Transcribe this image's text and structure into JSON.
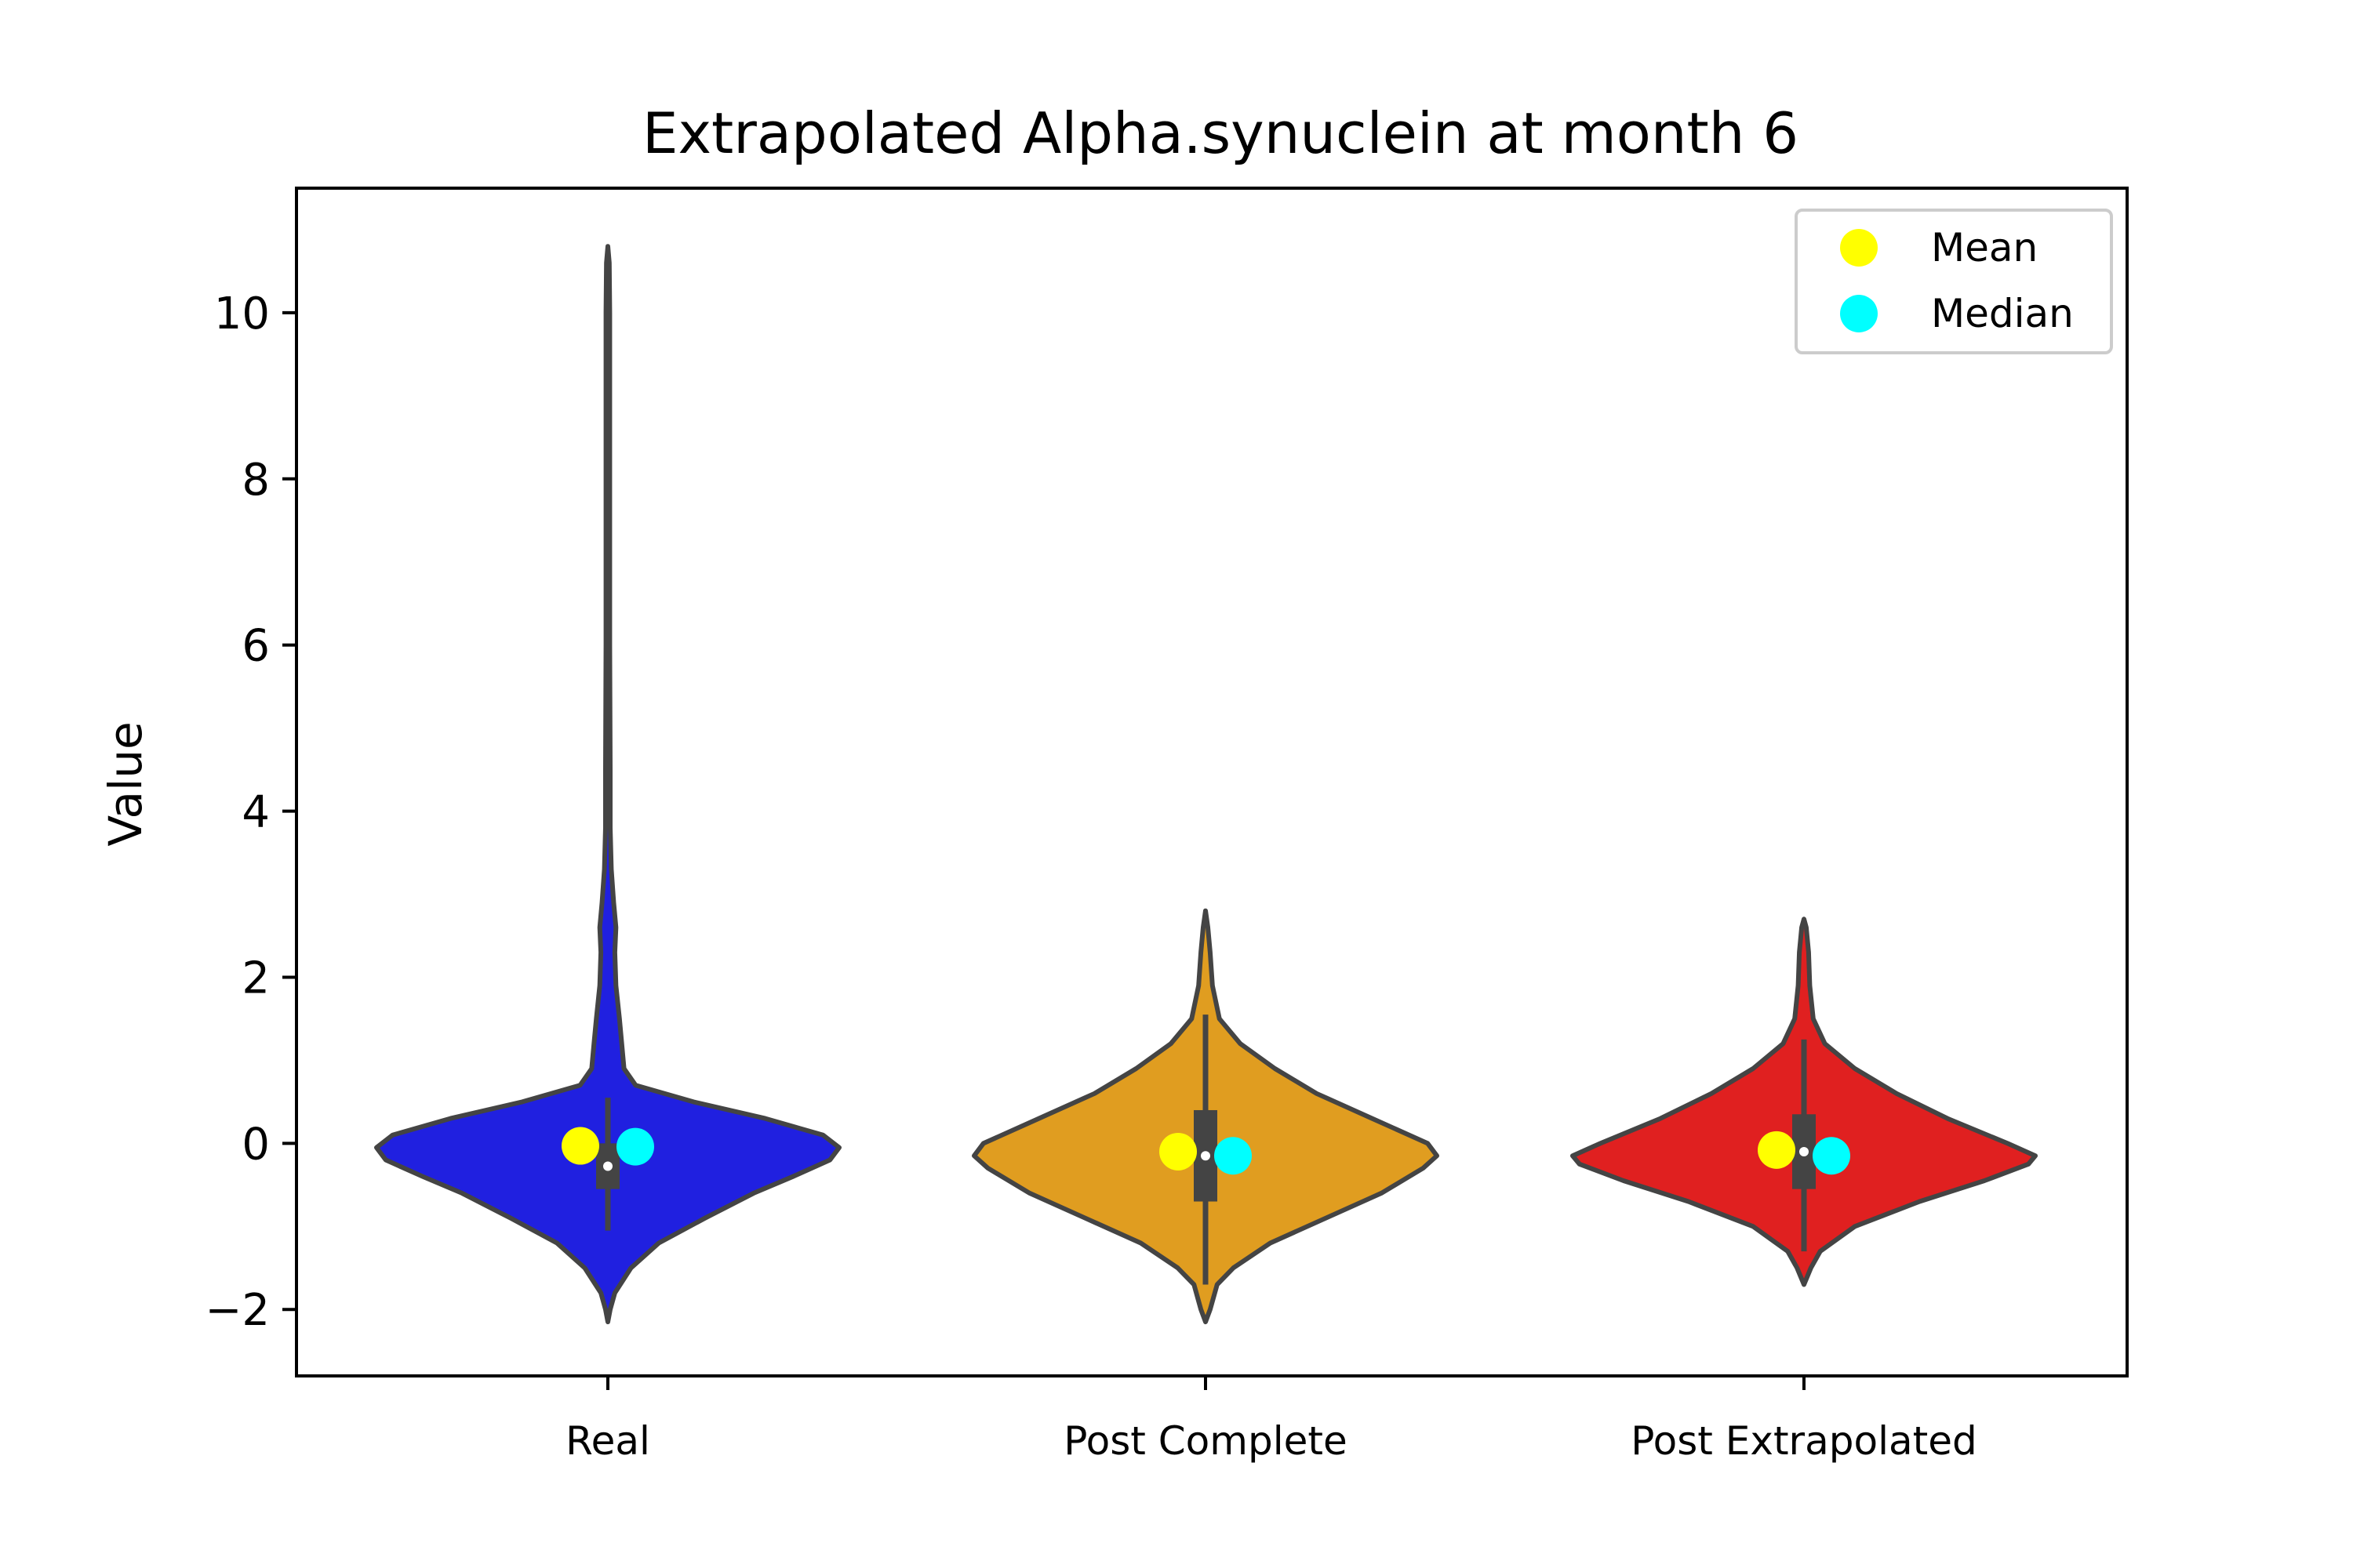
{
  "chart_data": {
    "type": "violin",
    "title": "Extrapolated Alpha.synuclein at month 6",
    "xlabel": "",
    "ylabel": "Value",
    "ylim": [
      -2.8,
      11.5
    ],
    "yticks": [
      -2,
      0,
      2,
      4,
      6,
      8,
      10
    ],
    "ytick_labels": [
      "−2",
      "0",
      "2",
      "4",
      "6",
      "8",
      "10"
    ],
    "grid": false,
    "legend_position": "top-right",
    "legend": [
      {
        "label": "Mean",
        "color": "#ffff00"
      },
      {
        "label": "Median",
        "color": "#00ffff"
      }
    ],
    "categories": [
      "Real",
      "Post Complete",
      "Post Extrapolated"
    ],
    "series": [
      {
        "category": "Real",
        "color": "#2020e0",
        "mean": -0.03,
        "median": -0.04,
        "q1": -0.55,
        "q3": 0.0,
        "whisker_low": -1.05,
        "whisker_high": 0.55,
        "min": -2.15,
        "max": 10.8,
        "density": [
          [
            -2.15,
            0.0
          ],
          [
            -2.0,
            0.01
          ],
          [
            -1.8,
            0.03
          ],
          [
            -1.5,
            0.1
          ],
          [
            -1.2,
            0.22
          ],
          [
            -0.9,
            0.42
          ],
          [
            -0.6,
            0.63
          ],
          [
            -0.4,
            0.8
          ],
          [
            -0.2,
            0.96
          ],
          [
            -0.05,
            1.0
          ],
          [
            0.1,
            0.93
          ],
          [
            0.3,
            0.68
          ],
          [
            0.5,
            0.37
          ],
          [
            0.7,
            0.12
          ],
          [
            0.9,
            0.07
          ],
          [
            1.2,
            0.06
          ],
          [
            1.5,
            0.05
          ],
          [
            1.9,
            0.035
          ],
          [
            2.3,
            0.03
          ],
          [
            2.6,
            0.035
          ],
          [
            2.9,
            0.025
          ],
          [
            3.3,
            0.015
          ],
          [
            3.8,
            0.01
          ],
          [
            4.5,
            0.01
          ],
          [
            6.0,
            0.008
          ],
          [
            8.0,
            0.008
          ],
          [
            10.0,
            0.008
          ],
          [
            10.6,
            0.006
          ],
          [
            10.8,
            0.0
          ]
        ]
      },
      {
        "category": "Post Complete",
        "color": "#e09d20",
        "mean": -0.1,
        "median": -0.15,
        "q1": -0.7,
        "q3": 0.4,
        "whisker_low": -1.7,
        "whisker_high": 1.55,
        "min": -2.15,
        "max": 2.8,
        "density": [
          [
            -2.15,
            0.0
          ],
          [
            -2.0,
            0.02
          ],
          [
            -1.7,
            0.05
          ],
          [
            -1.5,
            0.12
          ],
          [
            -1.2,
            0.28
          ],
          [
            -0.9,
            0.52
          ],
          [
            -0.6,
            0.76
          ],
          [
            -0.3,
            0.94
          ],
          [
            -0.15,
            1.0
          ],
          [
            0.0,
            0.96
          ],
          [
            0.3,
            0.72
          ],
          [
            0.6,
            0.48
          ],
          [
            0.9,
            0.3
          ],
          [
            1.2,
            0.15
          ],
          [
            1.5,
            0.06
          ],
          [
            1.9,
            0.03
          ],
          [
            2.3,
            0.02
          ],
          [
            2.6,
            0.01
          ],
          [
            2.8,
            0.0
          ]
        ]
      },
      {
        "category": "Post Extrapolated",
        "color": "#e02020",
        "mean": -0.08,
        "median": -0.15,
        "q1": -0.55,
        "q3": 0.35,
        "whisker_low": -1.3,
        "whisker_high": 1.25,
        "min": -1.7,
        "max": 2.7,
        "density": [
          [
            -1.7,
            0.0
          ],
          [
            -1.5,
            0.03
          ],
          [
            -1.3,
            0.07
          ],
          [
            -1.0,
            0.22
          ],
          [
            -0.7,
            0.5
          ],
          [
            -0.45,
            0.78
          ],
          [
            -0.25,
            0.97
          ],
          [
            -0.15,
            1.0
          ],
          [
            0.0,
            0.88
          ],
          [
            0.3,
            0.62
          ],
          [
            0.6,
            0.4
          ],
          [
            0.9,
            0.22
          ],
          [
            1.2,
            0.09
          ],
          [
            1.5,
            0.04
          ],
          [
            1.9,
            0.025
          ],
          [
            2.3,
            0.02
          ],
          [
            2.6,
            0.01
          ],
          [
            2.7,
            0.0
          ]
        ]
      }
    ]
  }
}
